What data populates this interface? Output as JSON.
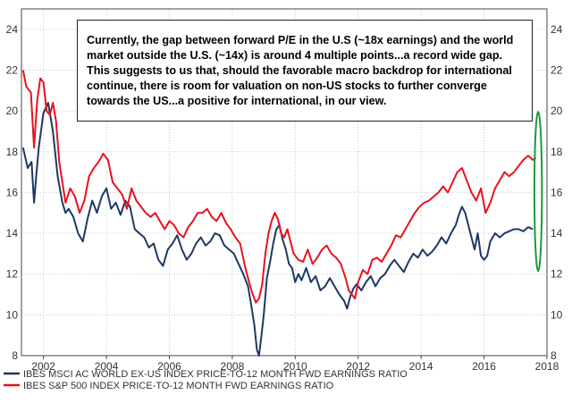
{
  "chart_data": {
    "type": "line",
    "title": "",
    "xlabel": "",
    "ylabel": "",
    "xlim": [
      2001.3,
      2018.0
    ],
    "ylim": [
      8,
      25
    ],
    "y_ticks": [
      8,
      10,
      12,
      14,
      16,
      18,
      20,
      22,
      24
    ],
    "x_ticks": [
      2002,
      2004,
      2006,
      2008,
      2010,
      2012,
      2014,
      2016,
      2018
    ],
    "grid": true,
    "legend_position": "bottom-left",
    "annotation": "Currently, the gap between forward P/E in the U.S (~18x earnings) and the world market outside the U.S. (~14x) is around 4 multiple points...a record wide gap. This suggests to us that, should the favorable macro backdrop for international continue, there is room for valuation on non-US stocks to further converge towards the US...a positive for international, in our view.",
    "highlight_ellipse": {
      "x_center": 2017.72,
      "y_center": 16.05,
      "x_radius": 0.12,
      "y_radius": 3.9
    },
    "series": [
      {
        "name": "IBES MSCI AC WORLD EX-US INDEX PRICE-TO-12 MONTH FWD EARNINGS RATIO",
        "color": "#1f3864",
        "x": [
          2001.35,
          2001.5,
          2001.62,
          2001.7,
          2001.78,
          2001.85,
          2002.0,
          2002.15,
          2002.3,
          2002.45,
          2002.6,
          2002.7,
          2002.8,
          2002.95,
          2003.1,
          2003.25,
          2003.4,
          2003.55,
          2003.7,
          2003.85,
          2004.0,
          2004.15,
          2004.3,
          2004.45,
          2004.6,
          2004.75,
          2004.9,
          2005.05,
          2005.2,
          2005.35,
          2005.5,
          2005.65,
          2005.8,
          2005.95,
          2006.1,
          2006.25,
          2006.4,
          2006.55,
          2006.7,
          2006.85,
          2007.0,
          2007.15,
          2007.3,
          2007.45,
          2007.6,
          2007.75,
          2007.9,
          2008.05,
          2008.2,
          2008.35,
          2008.5,
          2008.6,
          2008.7,
          2008.78,
          2008.85,
          2008.92,
          2009.0,
          2009.1,
          2009.2,
          2009.3,
          2009.4,
          2009.5,
          2009.6,
          2009.7,
          2009.8,
          2009.9,
          2010.0,
          2010.1,
          2010.2,
          2010.35,
          2010.5,
          2010.65,
          2010.8,
          2010.95,
          2011.1,
          2011.25,
          2011.4,
          2011.55,
          2011.65,
          2011.75,
          2011.85,
          2011.95,
          2012.1,
          2012.25,
          2012.4,
          2012.55,
          2012.7,
          2012.85,
          2013.0,
          2013.15,
          2013.3,
          2013.45,
          2013.6,
          2013.75,
          2013.9,
          2014.05,
          2014.2,
          2014.35,
          2014.5,
          2014.65,
          2014.8,
          2014.95,
          2015.1,
          2015.2,
          2015.3,
          2015.4,
          2015.5,
          2015.6,
          2015.7,
          2015.8,
          2015.9,
          2016.0,
          2016.1,
          2016.2,
          2016.35,
          2016.5,
          2016.65,
          2016.8,
          2016.95,
          2017.1,
          2017.25,
          2017.4,
          2017.55
        ],
        "values": [
          18.2,
          17.2,
          17.5,
          15.5,
          17.0,
          18.2,
          19.9,
          20.4,
          19.0,
          16.8,
          15.5,
          15.0,
          15.2,
          14.8,
          14.0,
          13.6,
          14.7,
          15.6,
          15.0,
          15.8,
          16.2,
          15.2,
          15.5,
          14.9,
          15.6,
          15.3,
          14.2,
          14.0,
          13.8,
          13.3,
          13.5,
          12.7,
          12.4,
          13.2,
          13.5,
          13.9,
          13.2,
          12.7,
          13.0,
          13.5,
          13.8,
          13.4,
          13.6,
          14.0,
          13.9,
          13.4,
          13.2,
          13.0,
          12.5,
          12.0,
          11.4,
          10.5,
          9.5,
          8.3,
          8.0,
          8.9,
          10.0,
          11.8,
          12.6,
          13.5,
          14.2,
          14.4,
          13.7,
          13.2,
          12.5,
          12.3,
          11.6,
          12.0,
          11.7,
          12.3,
          11.6,
          11.9,
          11.2,
          11.4,
          11.8,
          11.4,
          11.0,
          10.7,
          10.3,
          10.9,
          11.3,
          11.5,
          11.2,
          11.6,
          11.9,
          11.4,
          11.8,
          12.0,
          12.4,
          12.7,
          12.4,
          12.1,
          12.6,
          13.0,
          12.8,
          13.2,
          12.9,
          13.1,
          13.4,
          13.8,
          13.5,
          14.0,
          14.4,
          14.9,
          15.3,
          15.0,
          14.4,
          13.8,
          13.2,
          14.0,
          12.9,
          12.7,
          12.9,
          13.6,
          14.0,
          13.8,
          14.0,
          14.1,
          14.2,
          14.2,
          14.1,
          14.3,
          14.2
        ]
      },
      {
        "name": "IBES S&P 500 INDEX PRICE-TO-12 MONTH FWD EARNINGS RATIO",
        "color": "#e8121d",
        "x": [
          2001.35,
          2001.45,
          2001.6,
          2001.7,
          2001.8,
          2001.9,
          2002.0,
          2002.1,
          2002.2,
          2002.3,
          2002.4,
          2002.5,
          2002.6,
          2002.7,
          2002.85,
          2003.0,
          2003.15,
          2003.3,
          2003.45,
          2003.6,
          2003.75,
          2003.9,
          2004.05,
          2004.2,
          2004.35,
          2004.5,
          2004.65,
          2004.8,
          2004.95,
          2005.1,
          2005.25,
          2005.4,
          2005.55,
          2005.7,
          2005.85,
          2006.0,
          2006.15,
          2006.3,
          2006.45,
          2006.6,
          2006.75,
          2006.9,
          2007.05,
          2007.2,
          2007.35,
          2007.5,
          2007.65,
          2007.8,
          2007.95,
          2008.1,
          2008.25,
          2008.4,
          2008.55,
          2008.65,
          2008.75,
          2008.85,
          2008.95,
          2009.05,
          2009.15,
          2009.25,
          2009.35,
          2009.45,
          2009.55,
          2009.65,
          2009.75,
          2009.85,
          2009.95,
          2010.1,
          2010.25,
          2010.4,
          2010.55,
          2010.7,
          2010.85,
          2011.0,
          2011.15,
          2011.3,
          2011.45,
          2011.6,
          2011.7,
          2011.8,
          2011.9,
          2012.0,
          2012.15,
          2012.3,
          2012.45,
          2012.6,
          2012.75,
          2012.9,
          2013.05,
          2013.2,
          2013.35,
          2013.5,
          2013.65,
          2013.8,
          2013.95,
          2014.1,
          2014.25,
          2014.4,
          2014.55,
          2014.7,
          2014.85,
          2015.0,
          2015.15,
          2015.3,
          2015.45,
          2015.6,
          2015.75,
          2015.9,
          2016.05,
          2016.2,
          2016.35,
          2016.5,
          2016.65,
          2016.8,
          2016.95,
          2017.1,
          2017.25,
          2017.4,
          2017.55,
          2017.65
        ],
        "values": [
          22.0,
          21.2,
          20.9,
          18.2,
          20.5,
          21.6,
          21.4,
          20.0,
          19.8,
          20.4,
          19.5,
          17.5,
          16.5,
          15.5,
          16.2,
          15.8,
          15.0,
          15.6,
          16.8,
          17.2,
          17.5,
          17.9,
          17.6,
          16.5,
          16.2,
          15.9,
          15.2,
          16.2,
          15.6,
          15.3,
          15.0,
          14.8,
          15.0,
          14.6,
          14.2,
          14.6,
          14.4,
          14.0,
          13.8,
          14.3,
          14.6,
          15.0,
          15.0,
          15.2,
          14.8,
          14.6,
          15.0,
          14.5,
          14.2,
          13.8,
          13.5,
          12.4,
          11.5,
          11.0,
          10.6,
          10.8,
          11.5,
          13.0,
          14.0,
          14.6,
          15.0,
          14.7,
          14.0,
          13.8,
          14.2,
          13.6,
          13.0,
          12.7,
          12.6,
          13.2,
          12.5,
          12.8,
          13.2,
          13.4,
          13.0,
          12.8,
          12.5,
          11.8,
          11.2,
          11.0,
          10.8,
          11.6,
          12.2,
          12.0,
          12.7,
          12.8,
          12.6,
          13.0,
          13.4,
          13.9,
          13.8,
          14.2,
          14.6,
          15.0,
          15.3,
          15.5,
          15.6,
          15.8,
          16.0,
          16.3,
          16.0,
          16.5,
          17.0,
          17.2,
          16.6,
          16.0,
          15.6,
          16.2,
          15.0,
          15.5,
          16.2,
          16.6,
          17.0,
          16.8,
          17.0,
          17.3,
          17.6,
          17.8,
          17.6,
          17.7
        ]
      }
    ]
  }
}
